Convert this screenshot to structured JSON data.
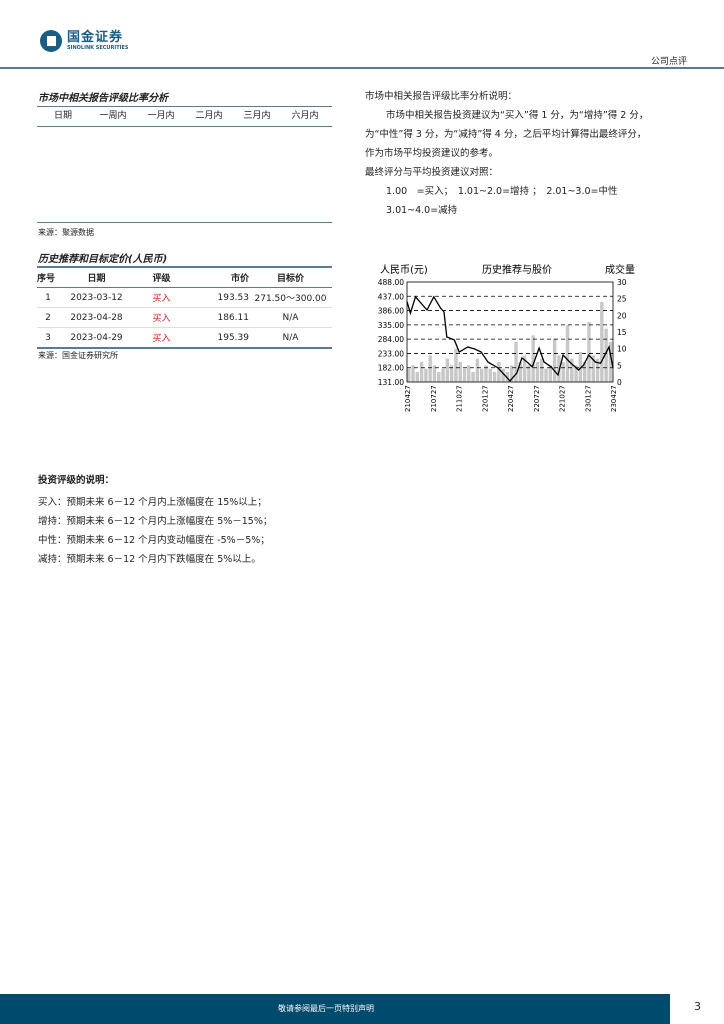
{
  "header": {
    "logo_cn": "国金证券",
    "logo_en": "SINOLINK SECURITIES",
    "doc_type": "公司点评"
  },
  "rating_ratio": {
    "title": "市场中相关报告评级比率分析",
    "columns": [
      "日期",
      "一周内",
      "一月内",
      "二月内",
      "三月内",
      "六月内"
    ],
    "source": "来源：聚源数据"
  },
  "rating_note": {
    "title": "市场中相关报告评级比率分析说明：",
    "lines": [
      "市场中相关报告投资建议为“买入”得 1 分，为“增持”得 2 分，",
      "为“中性”得 3 分，为“减持”得 4 分，之后平均计算得出最终评分，",
      "作为市场平均投资建议的参考。",
      "最终评分与平均投资建议对照："
    ],
    "mapping": [
      "1.00　=买入；　1.01~2.0=增持 ；　2.01~3.0=中性",
      "3.01~4.0=减持"
    ]
  },
  "history": {
    "title": "历史推荐和目标定价(人民币)",
    "columns": [
      "序号",
      "日期",
      "评级",
      "市价",
      "目标价"
    ],
    "rows": [
      {
        "no": "1",
        "date": "2023-03-12",
        "rating": "买入",
        "price": "193.53",
        "target": "271.50～300.00"
      },
      {
        "no": "2",
        "date": "2023-04-28",
        "rating": "买入",
        "price": "186.11",
        "target": "N/A"
      },
      {
        "no": "3",
        "date": "2023-04-29",
        "rating": "买入",
        "price": "195.39",
        "target": "N/A"
      }
    ],
    "source": "来源：国金证券研究所"
  },
  "chart_data": {
    "type": "line",
    "title": "历史推荐与股价",
    "ylabel_left": "人民币(元)",
    "ylabel_right": "成交量",
    "ylim": [
      131,
      488
    ],
    "y2lim": [
      0,
      30
    ],
    "yticks": [
      "488.00",
      "437.00",
      "386.00",
      "335.00",
      "284.00",
      "233.00",
      "182.00",
      "131.00"
    ],
    "y2ticks": [
      "30",
      "25",
      "20",
      "15",
      "10",
      "5",
      "0"
    ],
    "xticks": [
      "210427",
      "210727",
      "211027",
      "220127",
      "220427",
      "220727",
      "221027",
      "230127",
      "230427"
    ],
    "grid": true,
    "colors": {
      "price": "#000000",
      "volume": "#c8c8c8"
    },
    "price_series": {
      "x": [
        "2021-04-27",
        "2021-05-09",
        "2021-05-27",
        "2021-07-07",
        "2021-07-31",
        "2021-08-24",
        "2021-09-05",
        "2021-09-15",
        "2021-10-12",
        "2021-10-29",
        "2021-11-28",
        "2021-12-22",
        "2022-01-15",
        "2022-02-08",
        "2022-03-16",
        "2022-04-27",
        "2022-05-21",
        "2022-06-08",
        "2022-06-27",
        "2022-07-15",
        "2022-08-08",
        "2022-08-26",
        "2022-09-20",
        "2022-10-14",
        "2022-11-01",
        "2022-11-25",
        "2022-12-26",
        "2023-01-13",
        "2023-01-31",
        "2023-02-24",
        "2023-03-14",
        "2023-04-13",
        "2023-04-27"
      ],
      "y": [
        418,
        377,
        435,
        388,
        435,
        395,
        381,
        292,
        281,
        238,
        256,
        249,
        238,
        202,
        181,
        135,
        163,
        217,
        202,
        185,
        252,
        202,
        185,
        156,
        227,
        202,
        174,
        192,
        227,
        202,
        198,
        256,
        181
      ]
    },
    "volume_series": [
      4,
      5,
      3,
      6,
      4,
      8,
      5,
      3,
      4,
      7,
      5,
      10,
      6,
      4,
      5,
      3,
      7,
      4,
      5,
      4,
      3,
      6,
      4,
      3,
      5,
      12,
      6,
      8,
      5,
      14,
      6,
      7,
      4,
      5,
      13,
      8,
      6,
      17,
      7,
      5,
      9,
      6,
      18,
      8,
      7,
      24,
      16,
      12
    ]
  },
  "rating_explain": {
    "title": "投资评级的说明：",
    "lines": [
      "买入：预期未来 6－12 个月内上涨幅度在 15%以上；",
      "增持：预期未来 6－12 个月内上涨幅度在 5%－15%；",
      "中性：预期未来 6－12 个月内变动幅度在 -5%－5%；",
      "减持：预期未来 6－12 个月内下跌幅度在 5%以上。"
    ]
  },
  "footer": {
    "note": "敬请参阅最后一页特别声明",
    "page": "3"
  }
}
